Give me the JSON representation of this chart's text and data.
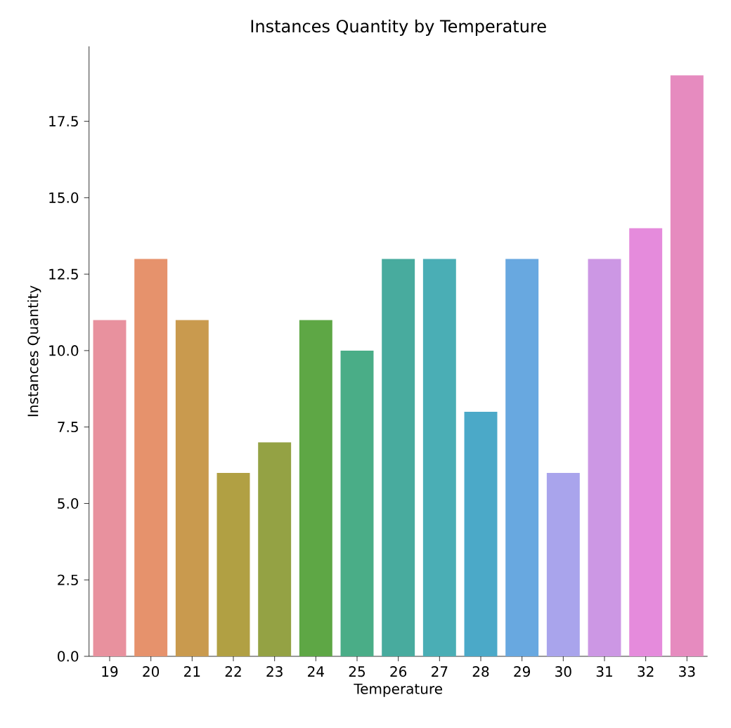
{
  "chart_data": {
    "type": "bar",
    "title": "Instances Quantity by Temperature",
    "xlabel": "Temperature",
    "ylabel": "Instances Quantity",
    "categories": [
      "19",
      "20",
      "21",
      "22",
      "23",
      "24",
      "25",
      "26",
      "27",
      "28",
      "29",
      "30",
      "31",
      "32",
      "33"
    ],
    "values": [
      11,
      13,
      11,
      6,
      7,
      11,
      10,
      13,
      13,
      8,
      13,
      6,
      13,
      14,
      19
    ],
    "colors": [
      "#e8919e",
      "#e6926c",
      "#c99a4e",
      "#b1a043",
      "#94a244",
      "#5ea745",
      "#4aad87",
      "#48ab9e",
      "#4aaeb5",
      "#4ba9c8",
      "#68a8e0",
      "#a9a4ec",
      "#cc97e4",
      "#e58bdc",
      "#e68bbf"
    ],
    "ylim": [
      0,
      19.95
    ],
    "yticks": [
      {
        "value": 0,
        "label": "0.0"
      },
      {
        "value": 2.5,
        "label": "2.5"
      },
      {
        "value": 5,
        "label": "5.0"
      },
      {
        "value": 7.5,
        "label": "7.5"
      },
      {
        "value": 10,
        "label": "10.0"
      },
      {
        "value": 12.5,
        "label": "12.5"
      },
      {
        "value": 15,
        "label": "15.0"
      },
      {
        "value": 17.5,
        "label": "17.5"
      }
    ],
    "grid": false
  }
}
